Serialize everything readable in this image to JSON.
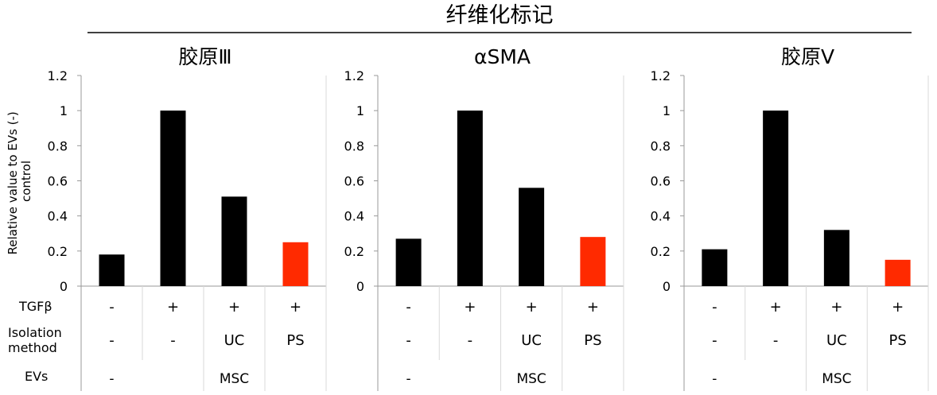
{
  "title": "纤维化标记",
  "ylabel": "Relative value to EVs (-) control",
  "row_labels": {
    "tgf": "TGFβ",
    "isolation": "Isolation method",
    "evs": "EVs"
  },
  "conditions": {
    "tgf": [
      "-",
      "+",
      "+",
      "+"
    ],
    "isolation": [
      "-",
      "-",
      "UC",
      "PS"
    ],
    "evs_groups": [
      {
        "label": "-",
        "span": [
          0,
          1
        ]
      },
      {
        "label": "MSC",
        "span": [
          1,
          4
        ]
      }
    ]
  },
  "colors": {
    "bar": "#000000",
    "highlight": "#ff2a00",
    "axis": "#999999",
    "grid": "#d9d9d9"
  },
  "chart_data": [
    {
      "type": "bar",
      "title": "胶原Ⅲ",
      "categories": [
        "1",
        "2",
        "3",
        "4"
      ],
      "values": [
        0.18,
        1.0,
        0.51,
        0.25
      ],
      "ylim": [
        0,
        1.2
      ],
      "yticks": [
        "1.2",
        "1",
        "0.8",
        "0.6",
        "0.4",
        "0.2",
        "0"
      ],
      "highlight_index": 3
    },
    {
      "type": "bar",
      "title": "αSMA",
      "categories": [
        "1",
        "2",
        "3",
        "4"
      ],
      "values": [
        0.27,
        1.0,
        0.56,
        0.28
      ],
      "ylim": [
        0,
        1.2
      ],
      "yticks": [
        "1.2",
        "1",
        "0.8",
        "0.6",
        "0.4",
        "0.2",
        "0"
      ],
      "highlight_index": 3
    },
    {
      "type": "bar",
      "title": "胶原Ⅴ",
      "categories": [
        "1",
        "2",
        "3",
        "4"
      ],
      "values": [
        0.21,
        1.0,
        0.32,
        0.15
      ],
      "ylim": [
        0,
        1.2
      ],
      "yticks": [
        "1.2",
        "1",
        "0.8",
        "0.6",
        "0.4",
        "0.2",
        "0"
      ],
      "highlight_index": 3
    }
  ]
}
